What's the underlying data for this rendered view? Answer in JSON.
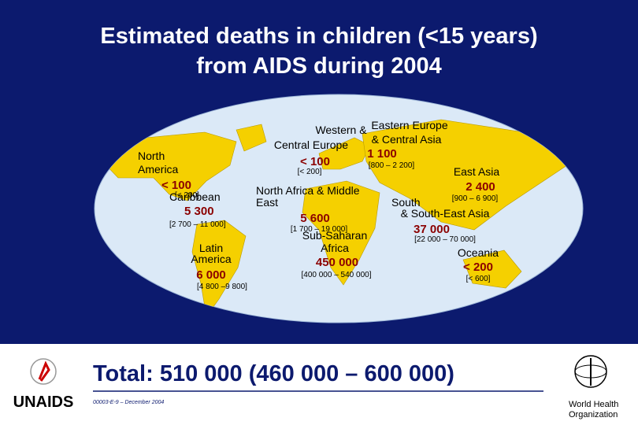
{
  "title": [
    "Estimated deaths in children (<15 years)",
    "from AIDS during 2004"
  ],
  "regions": [
    {
      "name": [
        "North",
        "America"
      ],
      "estimate": "< 100",
      "range": "[< 200]"
    },
    {
      "name": [
        "Caribbean"
      ],
      "estimate": "5 300",
      "range": "[2 700 – 11 000]"
    },
    {
      "name": [
        "Latin",
        "America"
      ],
      "estimate": "6 000",
      "range": "[4 800 –9 800]"
    },
    {
      "name": [
        "Western &",
        "Central Europe"
      ],
      "estimate": "< 100",
      "range": "[< 200]"
    },
    {
      "name": [
        "Eastern Europe",
        "& Central Asia"
      ],
      "estimate": "1 100",
      "range": "[800 – 2 200]"
    },
    {
      "name": [
        "North Africa & Middle",
        "East"
      ],
      "estimate": "5 600",
      "range": "[1 700 – 19 000]"
    },
    {
      "name": [
        "Sub-Saharan",
        "Africa"
      ],
      "estimate": "450 000",
      "range": "[400 000 – 540 000]"
    },
    {
      "name": [
        "East Asia"
      ],
      "estimate": "2 400",
      "range": "[900 – 6 900]"
    },
    {
      "name": [
        "South",
        "& South-East Asia"
      ],
      "estimate": "37 000",
      "range": "[22 000 – 70 000]"
    },
    {
      "name": [
        "Oceania"
      ],
      "estimate": "< 200",
      "range": "[< 600]"
    }
  ],
  "total": "Total: 510 000 (460 000 – 600 000)",
  "footer": "00003-E-9 – December 2004",
  "logos": {
    "left": "UNAIDS",
    "right": [
      "World Health",
      "Organization"
    ]
  }
}
